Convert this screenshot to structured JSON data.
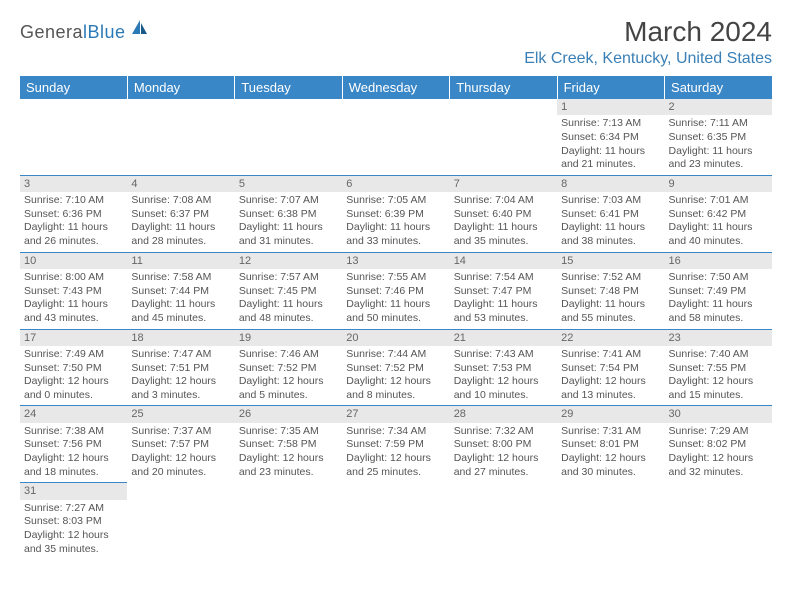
{
  "logo": {
    "text1": "Genera",
    "text2": "lBlue"
  },
  "title": "March 2024",
  "location": "Elk Creek, Kentucky, United States",
  "colors": {
    "header_bg": "#3a87c7",
    "header_text": "#ffffff",
    "accent": "#3a7fb5",
    "daynum_bg": "#e8e8e8",
    "body_text": "#555555",
    "border": "#3a87c7"
  },
  "day_headers": [
    "Sunday",
    "Monday",
    "Tuesday",
    "Wednesday",
    "Thursday",
    "Friday",
    "Saturday"
  ],
  "weeks": [
    [
      {
        "n": "",
        "sr": "",
        "ss": "",
        "dl": ""
      },
      {
        "n": "",
        "sr": "",
        "ss": "",
        "dl": ""
      },
      {
        "n": "",
        "sr": "",
        "ss": "",
        "dl": ""
      },
      {
        "n": "",
        "sr": "",
        "ss": "",
        "dl": ""
      },
      {
        "n": "",
        "sr": "",
        "ss": "",
        "dl": ""
      },
      {
        "n": "1",
        "sr": "Sunrise: 7:13 AM",
        "ss": "Sunset: 6:34 PM",
        "dl": "Daylight: 11 hours and 21 minutes."
      },
      {
        "n": "2",
        "sr": "Sunrise: 7:11 AM",
        "ss": "Sunset: 6:35 PM",
        "dl": "Daylight: 11 hours and 23 minutes."
      }
    ],
    [
      {
        "n": "3",
        "sr": "Sunrise: 7:10 AM",
        "ss": "Sunset: 6:36 PM",
        "dl": "Daylight: 11 hours and 26 minutes."
      },
      {
        "n": "4",
        "sr": "Sunrise: 7:08 AM",
        "ss": "Sunset: 6:37 PM",
        "dl": "Daylight: 11 hours and 28 minutes."
      },
      {
        "n": "5",
        "sr": "Sunrise: 7:07 AM",
        "ss": "Sunset: 6:38 PM",
        "dl": "Daylight: 11 hours and 31 minutes."
      },
      {
        "n": "6",
        "sr": "Sunrise: 7:05 AM",
        "ss": "Sunset: 6:39 PM",
        "dl": "Daylight: 11 hours and 33 minutes."
      },
      {
        "n": "7",
        "sr": "Sunrise: 7:04 AM",
        "ss": "Sunset: 6:40 PM",
        "dl": "Daylight: 11 hours and 35 minutes."
      },
      {
        "n": "8",
        "sr": "Sunrise: 7:03 AM",
        "ss": "Sunset: 6:41 PM",
        "dl": "Daylight: 11 hours and 38 minutes."
      },
      {
        "n": "9",
        "sr": "Sunrise: 7:01 AM",
        "ss": "Sunset: 6:42 PM",
        "dl": "Daylight: 11 hours and 40 minutes."
      }
    ],
    [
      {
        "n": "10",
        "sr": "Sunrise: 8:00 AM",
        "ss": "Sunset: 7:43 PM",
        "dl": "Daylight: 11 hours and 43 minutes."
      },
      {
        "n": "11",
        "sr": "Sunrise: 7:58 AM",
        "ss": "Sunset: 7:44 PM",
        "dl": "Daylight: 11 hours and 45 minutes."
      },
      {
        "n": "12",
        "sr": "Sunrise: 7:57 AM",
        "ss": "Sunset: 7:45 PM",
        "dl": "Daylight: 11 hours and 48 minutes."
      },
      {
        "n": "13",
        "sr": "Sunrise: 7:55 AM",
        "ss": "Sunset: 7:46 PM",
        "dl": "Daylight: 11 hours and 50 minutes."
      },
      {
        "n": "14",
        "sr": "Sunrise: 7:54 AM",
        "ss": "Sunset: 7:47 PM",
        "dl": "Daylight: 11 hours and 53 minutes."
      },
      {
        "n": "15",
        "sr": "Sunrise: 7:52 AM",
        "ss": "Sunset: 7:48 PM",
        "dl": "Daylight: 11 hours and 55 minutes."
      },
      {
        "n": "16",
        "sr": "Sunrise: 7:50 AM",
        "ss": "Sunset: 7:49 PM",
        "dl": "Daylight: 11 hours and 58 minutes."
      }
    ],
    [
      {
        "n": "17",
        "sr": "Sunrise: 7:49 AM",
        "ss": "Sunset: 7:50 PM",
        "dl": "Daylight: 12 hours and 0 minutes."
      },
      {
        "n": "18",
        "sr": "Sunrise: 7:47 AM",
        "ss": "Sunset: 7:51 PM",
        "dl": "Daylight: 12 hours and 3 minutes."
      },
      {
        "n": "19",
        "sr": "Sunrise: 7:46 AM",
        "ss": "Sunset: 7:52 PM",
        "dl": "Daylight: 12 hours and 5 minutes."
      },
      {
        "n": "20",
        "sr": "Sunrise: 7:44 AM",
        "ss": "Sunset: 7:52 PM",
        "dl": "Daylight: 12 hours and 8 minutes."
      },
      {
        "n": "21",
        "sr": "Sunrise: 7:43 AM",
        "ss": "Sunset: 7:53 PM",
        "dl": "Daylight: 12 hours and 10 minutes."
      },
      {
        "n": "22",
        "sr": "Sunrise: 7:41 AM",
        "ss": "Sunset: 7:54 PM",
        "dl": "Daylight: 12 hours and 13 minutes."
      },
      {
        "n": "23",
        "sr": "Sunrise: 7:40 AM",
        "ss": "Sunset: 7:55 PM",
        "dl": "Daylight: 12 hours and 15 minutes."
      }
    ],
    [
      {
        "n": "24",
        "sr": "Sunrise: 7:38 AM",
        "ss": "Sunset: 7:56 PM",
        "dl": "Daylight: 12 hours and 18 minutes."
      },
      {
        "n": "25",
        "sr": "Sunrise: 7:37 AM",
        "ss": "Sunset: 7:57 PM",
        "dl": "Daylight: 12 hours and 20 minutes."
      },
      {
        "n": "26",
        "sr": "Sunrise: 7:35 AM",
        "ss": "Sunset: 7:58 PM",
        "dl": "Daylight: 12 hours and 23 minutes."
      },
      {
        "n": "27",
        "sr": "Sunrise: 7:34 AM",
        "ss": "Sunset: 7:59 PM",
        "dl": "Daylight: 12 hours and 25 minutes."
      },
      {
        "n": "28",
        "sr": "Sunrise: 7:32 AM",
        "ss": "Sunset: 8:00 PM",
        "dl": "Daylight: 12 hours and 27 minutes."
      },
      {
        "n": "29",
        "sr": "Sunrise: 7:31 AM",
        "ss": "Sunset: 8:01 PM",
        "dl": "Daylight: 12 hours and 30 minutes."
      },
      {
        "n": "30",
        "sr": "Sunrise: 7:29 AM",
        "ss": "Sunset: 8:02 PM",
        "dl": "Daylight: 12 hours and 32 minutes."
      }
    ],
    [
      {
        "n": "31",
        "sr": "Sunrise: 7:27 AM",
        "ss": "Sunset: 8:03 PM",
        "dl": "Daylight: 12 hours and 35 minutes."
      },
      {
        "n": "",
        "sr": "",
        "ss": "",
        "dl": ""
      },
      {
        "n": "",
        "sr": "",
        "ss": "",
        "dl": ""
      },
      {
        "n": "",
        "sr": "",
        "ss": "",
        "dl": ""
      },
      {
        "n": "",
        "sr": "",
        "ss": "",
        "dl": ""
      },
      {
        "n": "",
        "sr": "",
        "ss": "",
        "dl": ""
      },
      {
        "n": "",
        "sr": "",
        "ss": "",
        "dl": ""
      }
    ]
  ]
}
